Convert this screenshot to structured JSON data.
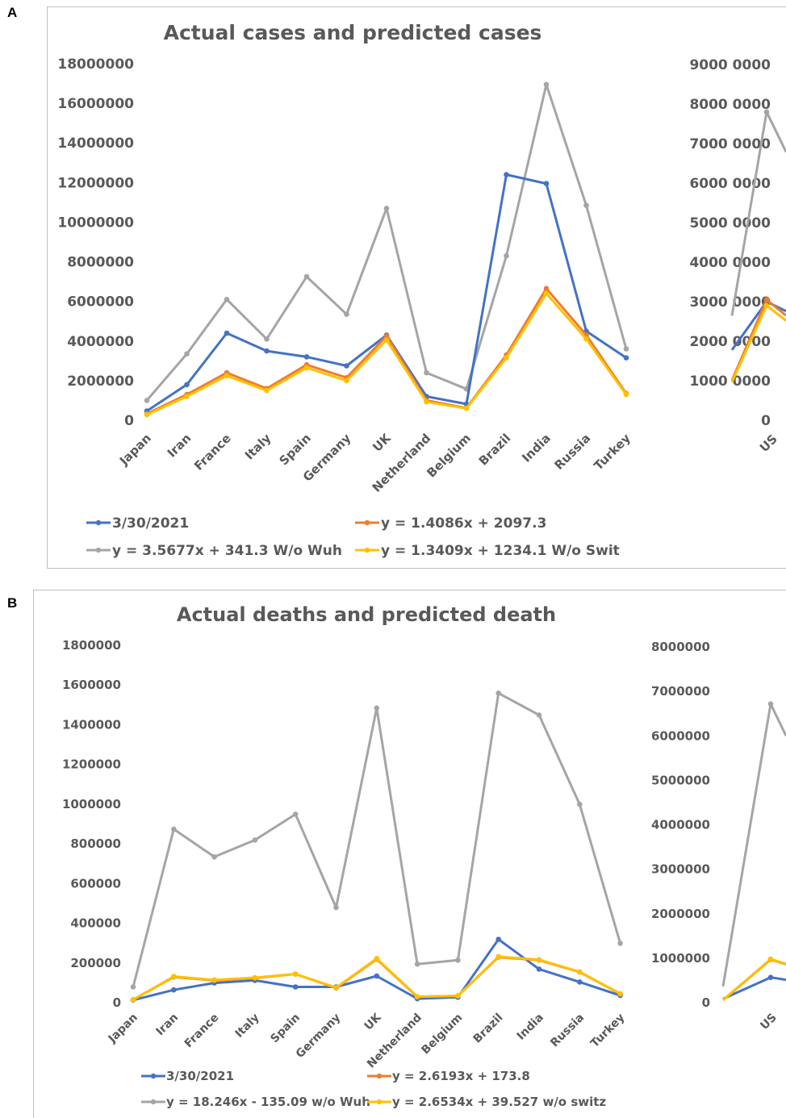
{
  "panels": [
    {
      "letter": "A",
      "title": "Actual cases and predicted cases",
      "left_ticks": [
        "18000000",
        "16000000",
        "14000000",
        "12000000",
        "10000000",
        "8000000",
        "6000000",
        "4000000",
        "2000000",
        "0"
      ],
      "right_ticks": [
        "9000 0000",
        "8000 0000",
        "7000 0000",
        "6000 0000",
        "5000 0000",
        "4000 0000",
        "3000 0000",
        "2000 0000",
        "1000 0000",
        "0"
      ],
      "right_cat": "US",
      "legend": [
        "3/30/2021",
        "y = 1.4086x + 2097.3",
        "y = 3.5677x + 341.3 W/o Wuh",
        "y = 1.3409x + 1234.1 W/o Swit"
      ]
    },
    {
      "letter": "B",
      "title": "Actual deaths and predicted death",
      "left_ticks": [
        "1800000",
        "1600000",
        "1400000",
        "1200000",
        "1000000",
        "800000",
        "600000",
        "400000",
        "200000",
        "0"
      ],
      "right_ticks": [
        "8000000",
        "7000000",
        "6000000",
        "5000000",
        "4000000",
        "3000000",
        "2000000",
        "1000000",
        "0"
      ],
      "right_cat": "US",
      "legend": [
        "3/30/2021",
        "y = 2.6193x + 173.8",
        "y = 18.246x - 135.09 w/o Wuh",
        "y = 2.6534x + 39.527 w/o switz"
      ]
    }
  ],
  "chart_data": [
    {
      "type": "line",
      "title": "Actual cases and predicted cases",
      "categories": [
        "Japan",
        "Iran",
        "France",
        "Italy",
        "Spain",
        "Germany",
        "UK",
        "Netherland",
        "Belgium",
        "Brazil",
        "India",
        "Russia",
        "Turkey"
      ],
      "ylim": [
        0,
        18000000
      ],
      "series": [
        {
          "name": "3/30/2021",
          "color": "#4472C4",
          "values": [
            470000,
            1800000,
            4400000,
            3500000,
            3200000,
            2750000,
            4300000,
            1200000,
            820000,
            12400000,
            11950000,
            4500000,
            3150000
          ]
        },
        {
          "name": "y = 1.4086x + 2097.3",
          "color": "#ED7D31",
          "values": [
            330000,
            1300000,
            2400000,
            1600000,
            2800000,
            2150000,
            4250000,
            1000000,
            620000,
            3300000,
            6650000,
            4300000,
            1350000
          ]
        },
        {
          "name": "y = 3.5677x + 341.3 W/o Wuh",
          "color": "#A5A5A5",
          "values": [
            1000000,
            3350000,
            6100000,
            4100000,
            7250000,
            5350000,
            10700000,
            2400000,
            1580000,
            8300000,
            16950000,
            10850000,
            3600000
          ]
        },
        {
          "name": "y = 1.3409x + 1234.1 W/o Swit",
          "color": "#FFC000",
          "values": [
            280000,
            1200000,
            2250000,
            1500000,
            2650000,
            2000000,
            4050000,
            930000,
            600000,
            3150000,
            6400000,
            4100000,
            1300000
          ]
        }
      ],
      "secondary": {
        "category": "US",
        "ylim": [
          0,
          90000000
        ],
        "values": {
          "3/30/2021": 30000000,
          "y = 1.4086x + 2097.3": 30500000,
          "y = 3.5677x + 341.3 W/o Wuh": 78000000,
          "y = 1.3409x + 1234.1 W/o Swit": 29000000
        }
      }
    },
    {
      "type": "line",
      "title": "Actual deaths and predicted death",
      "categories": [
        "Japan",
        "Iran",
        "France",
        "Italy",
        "Spain",
        "Germany",
        "UK",
        "Netherland",
        "Belgium",
        "Brazil",
        "India",
        "Russia",
        "Turkey"
      ],
      "ylim": [
        0,
        1800000
      ],
      "series": [
        {
          "name": "3/30/2021",
          "color": "#4472C4",
          "values": [
            9000,
            60000,
            95000,
            108000,
            75000,
            75000,
            130000,
            16000,
            23000,
            315000,
            165000,
            100000,
            32000
          ]
        },
        {
          "name": "y = 2.6193x + 173.8",
          "color": "#ED7D31",
          "values": [
            11000,
            125000,
            108000,
            120000,
            140000,
            70000,
            215000,
            25000,
            30000,
            225000,
            210000,
            150000,
            40000
          ]
        },
        {
          "name": "y = 18.246x - 135.09 w/o Wuh",
          "color": "#A5A5A5",
          "values": [
            75000,
            870000,
            730000,
            815000,
            945000,
            475000,
            1480000,
            190000,
            210000,
            1555000,
            1445000,
            995000,
            295000
          ]
        },
        {
          "name": "y = 2.6534x + 39.527 w/o switz",
          "color": "#FFC000",
          "values": [
            10000,
            128000,
            110000,
            122000,
            140000,
            72000,
            218000,
            26000,
            30000,
            228000,
            212000,
            151000,
            41000
          ]
        }
      ],
      "secondary": {
        "category": "US",
        "ylim": [
          0,
          8000000
        ],
        "values": {
          "3/30/2021": 550000,
          "y = 2.6193x + 173.8": 950000,
          "y = 18.246x - 135.09 w/o Wuh": 6700000,
          "y = 2.6534x + 39.527 w/o switz": 960000
        }
      }
    }
  ]
}
